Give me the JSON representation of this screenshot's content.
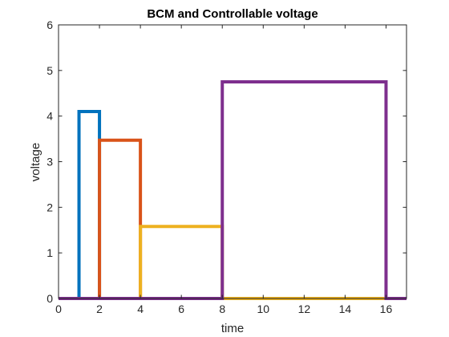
{
  "chart_data": {
    "type": "line",
    "title": "BCM and Controllable voltage",
    "xlabel": "time",
    "ylabel": "voltage",
    "xlim": [
      0,
      17
    ],
    "ylim": [
      0,
      6
    ],
    "xticks": [
      0,
      2,
      4,
      6,
      8,
      10,
      12,
      14,
      16
    ],
    "yticks": [
      0,
      1,
      2,
      3,
      4,
      5,
      6
    ],
    "grid": false,
    "box": true,
    "series": [
      {
        "color": "#0072BD",
        "x": [
          0,
          1,
          1,
          2,
          2,
          17
        ],
        "y": [
          0,
          0,
          4.1,
          4.1,
          0,
          0
        ]
      },
      {
        "color": "#D95319",
        "x": [
          0,
          2,
          2,
          4,
          4,
          17
        ],
        "y": [
          0,
          0,
          3.47,
          3.47,
          0,
          0
        ]
      },
      {
        "color": "#EDB120",
        "x": [
          0,
          4,
          4,
          8,
          8,
          17
        ],
        "y": [
          0,
          0,
          1.58,
          1.58,
          0,
          0
        ]
      },
      {
        "color": "#7E2F8E",
        "x": [
          0,
          8,
          8,
          16,
          16,
          17
        ],
        "y": [
          0,
          0,
          4.75,
          4.75,
          0,
          0
        ]
      }
    ]
  }
}
